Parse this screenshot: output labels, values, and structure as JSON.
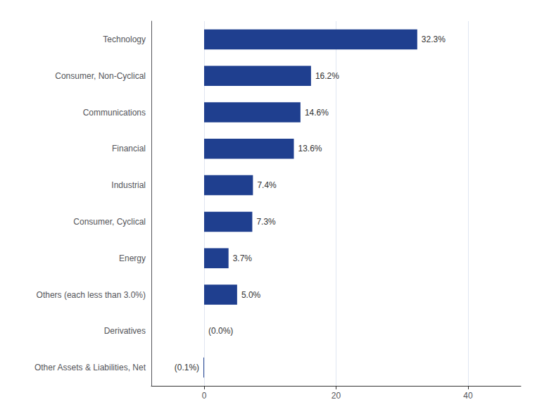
{
  "chart_data": {
    "type": "bar",
    "orientation": "horizontal",
    "categories": [
      "Technology",
      "Consumer, Non-Cyclical",
      "Communications",
      "Financial",
      "Industrial",
      "Consumer, Cyclical",
      "Energy",
      "Others (each less than 3.0%)",
      "Derivatives",
      "Other Assets & Liabilities, Net"
    ],
    "values": [
      32.3,
      16.2,
      14.6,
      13.6,
      7.4,
      7.3,
      3.7,
      5.0,
      0.0,
      -0.1
    ],
    "value_labels": [
      "32.3%",
      "16.2%",
      "14.6%",
      "13.6%",
      "7.4%",
      "7.3%",
      "3.7%",
      "5.0%",
      "(0.0%)",
      "(0.1%)"
    ],
    "color": "#1F3F8F",
    "xlim": [
      -8,
      48
    ],
    "xticks": [
      0,
      20,
      40
    ],
    "grid": true,
    "data_labels": true
  }
}
